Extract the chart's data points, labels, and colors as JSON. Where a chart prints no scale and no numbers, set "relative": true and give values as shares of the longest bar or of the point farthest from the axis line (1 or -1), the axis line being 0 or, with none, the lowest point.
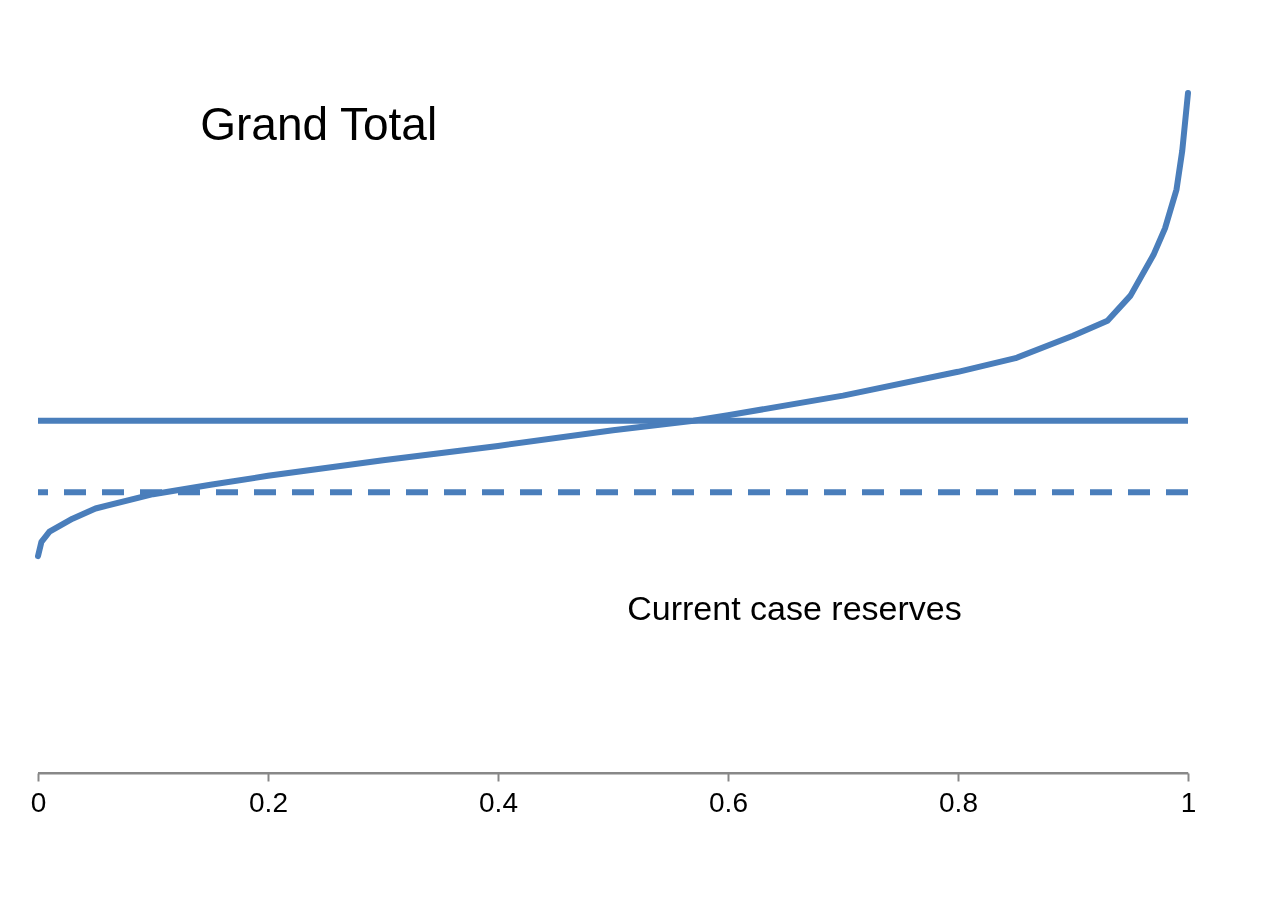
{
  "chart_data": {
    "type": "line",
    "title": "Grand Total",
    "relative": true,
    "xlim": [
      0,
      1
    ],
    "xticks": [
      0,
      0.2,
      0.4,
      0.6,
      0.8,
      1
    ],
    "grid": false,
    "marker": "none",
    "line_style": "solid",
    "x": [
      0,
      0.003,
      0.01,
      0.03,
      0.05,
      0.1,
      0.15,
      0.2,
      0.3,
      0.4,
      0.5,
      0.57,
      0.6,
      0.7,
      0.8,
      0.85,
      0.9,
      0.93,
      0.95,
      0.97,
      0.98,
      0.99,
      0.995,
      1
    ],
    "series": [
      {
        "color": "#4a7ebb",
        "values": [
          0.319,
          0.34,
          0.355,
          0.374,
          0.389,
          0.41,
          0.424,
          0.437,
          0.46,
          0.481,
          0.504,
          0.518,
          0.526,
          0.555,
          0.59,
          0.61,
          0.643,
          0.665,
          0.702,
          0.762,
          0.801,
          0.858,
          0.915,
          1
        ]
      }
    ],
    "ref_lines": [
      {
        "axis": "y",
        "value": 0.518,
        "color": "#4a7ebb",
        "line_style": "solid"
      },
      {
        "axis": "y",
        "value": 0.413,
        "color": "#4a7ebb",
        "line_style": "dashed"
      }
    ],
    "annotations": [
      {
        "text": "Current case reserves",
        "x": 0.71,
        "y": 0.413
      }
    ]
  }
}
